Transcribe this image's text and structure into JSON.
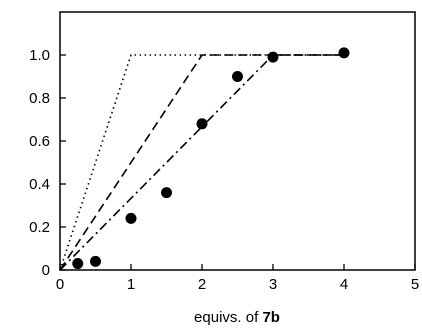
{
  "chart_data": {
    "type": "scatter",
    "title": "",
    "xlabel": "equivs. of",
    "xlabel_bold": "7b",
    "ylabel": "",
    "xlim": [
      0,
      5
    ],
    "ylim": [
      0,
      1.2
    ],
    "x_ticks": [
      "0",
      "1",
      "2",
      "3",
      "4",
      "5"
    ],
    "y_ticks": [
      "0",
      "0.2",
      "0.4",
      "0.6",
      "0.8",
      "1.0"
    ],
    "grid": false,
    "legend": "none",
    "series": [
      {
        "style": "points",
        "color": "#000000",
        "x": [
          0.25,
          0.5,
          1.0,
          1.5,
          2.0,
          2.5,
          3.0,
          4.0
        ],
        "y": [
          0.03,
          0.04,
          0.24,
          0.36,
          0.68,
          0.9,
          0.99,
          1.01
        ]
      },
      {
        "style": "dotted",
        "color": "#000000",
        "x": [
          0,
          1,
          4
        ],
        "y": [
          0,
          1.0,
          1.0
        ]
      },
      {
        "style": "dashed",
        "color": "#000000",
        "x": [
          0,
          2,
          4
        ],
        "y": [
          0,
          1.0,
          1.0
        ]
      },
      {
        "style": "dash-dot",
        "color": "#000000",
        "x": [
          0,
          3,
          4
        ],
        "y": [
          0,
          1.0,
          1.0
        ]
      }
    ]
  }
}
